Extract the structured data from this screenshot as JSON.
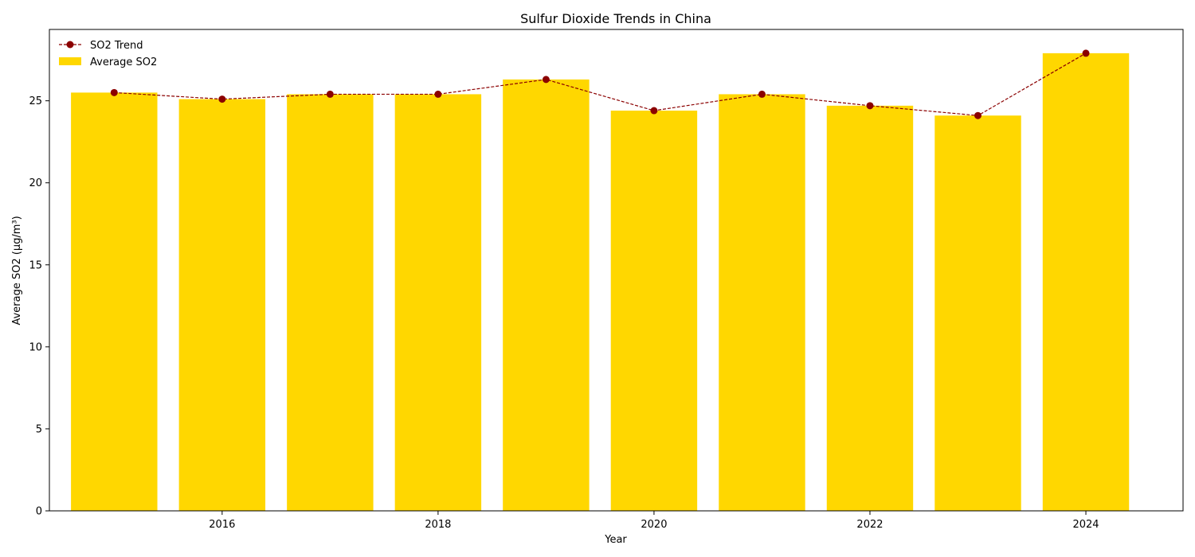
{
  "chart_data": {
    "type": "bar",
    "title": "Sulfur Dioxide Trends in China",
    "xlabel": "Year",
    "ylabel": "Average SO2 (µg/m³)",
    "categories": [
      2015,
      2016,
      2017,
      2018,
      2019,
      2020,
      2021,
      2022,
      2023,
      2024
    ],
    "series": [
      {
        "name": "Average SO2",
        "kind": "bar",
        "color": "#FFD700",
        "values": [
          25.5,
          25.1,
          25.4,
          25.4,
          26.3,
          24.4,
          25.4,
          24.7,
          24.1,
          27.9
        ]
      },
      {
        "name": "SO2 Trend",
        "kind": "line",
        "color": "#8B0000",
        "line_style": "dashed",
        "marker": "circle",
        "values": [
          25.5,
          25.1,
          25.4,
          25.4,
          26.3,
          24.4,
          25.4,
          24.7,
          24.1,
          27.9
        ]
      }
    ],
    "xlim": [
      2014.4,
      2024.9
    ],
    "ylim": [
      0,
      29.35
    ],
    "xticks": [
      2016,
      2018,
      2020,
      2022,
      2024
    ],
    "yticks": [
      0,
      5,
      10,
      15,
      20,
      25
    ],
    "grid": false,
    "legend_position": "upper left"
  }
}
